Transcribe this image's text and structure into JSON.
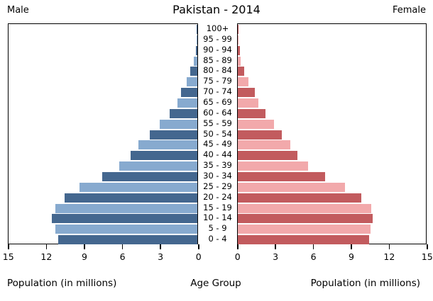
{
  "chart_data": {
    "type": "bar",
    "subtype": "population-pyramid",
    "title": "Pakistan - 2014",
    "male_label": "Male",
    "female_label": "Female",
    "age_axis_label": "Age Group",
    "left_axis_label": "Population (in millions)",
    "right_axis_label": "Population (in millions)",
    "axis_max": 15,
    "left_ticks": [
      "15",
      "12",
      "9",
      "6",
      "3",
      "0"
    ],
    "right_ticks": [
      "0",
      "3",
      "6",
      "9",
      "12",
      "15"
    ],
    "grid": false,
    "age_groups": [
      "100+",
      "95 - 99",
      "90 - 94",
      "85 - 89",
      "80 - 84",
      "75 - 79",
      "70 - 74",
      "65 - 69",
      "60 - 64",
      "55 - 59",
      "50 - 54",
      "45 - 49",
      "40 - 44",
      "35 - 39",
      "30 - 34",
      "25 - 29",
      "20 - 24",
      "15 - 19",
      "10 - 14",
      "5 - 9",
      "0 - 4"
    ],
    "series": [
      {
        "name": "Male",
        "orientation": "right-to-left",
        "values": [
          0.06,
          0.05,
          0.12,
          0.3,
          0.55,
          0.85,
          1.3,
          1.6,
          2.2,
          3.0,
          3.8,
          4.7,
          5.3,
          6.2,
          7.6,
          9.4,
          10.6,
          11.3,
          11.6,
          11.3,
          11.1
        ]
      },
      {
        "name": "Female",
        "orientation": "left-to-right",
        "values": [
          0.08,
          0.05,
          0.15,
          0.25,
          0.5,
          0.85,
          1.35,
          1.65,
          2.2,
          2.9,
          3.5,
          4.2,
          4.8,
          5.6,
          7.0,
          8.6,
          9.9,
          10.7,
          10.8,
          10.6,
          10.5
        ]
      }
    ],
    "colors": {
      "male_dark": "#44678F",
      "male_light": "#87AACF",
      "female_dark": "#C25B5E",
      "female_light": "#F2A9AB",
      "axis": "#000000",
      "background": "#ffffff"
    }
  }
}
